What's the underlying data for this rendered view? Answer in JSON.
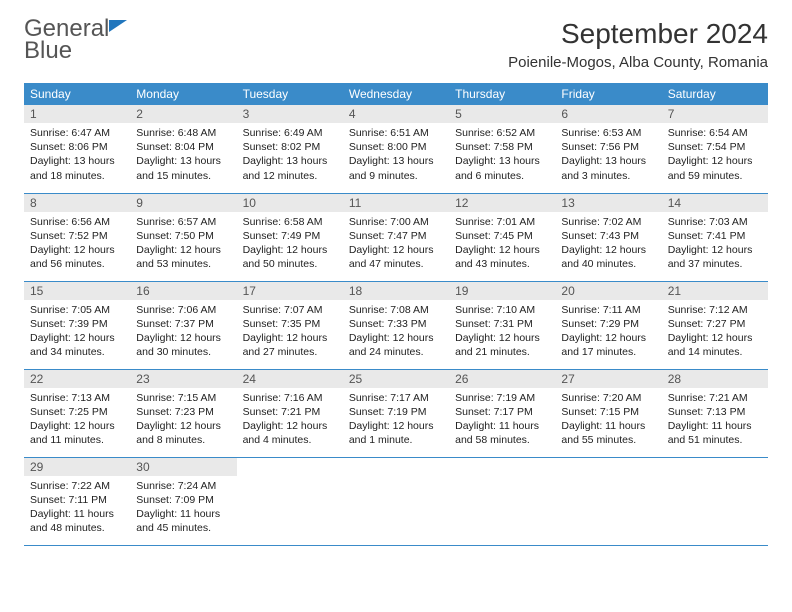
{
  "logo": {
    "line1": "General",
    "line2": "Blue"
  },
  "title": {
    "month": "September 2024",
    "location": "Poienile-Mogos, Alba County, Romania"
  },
  "colors": {
    "header_bg": "#3a8bc9",
    "header_fg": "#ffffff",
    "daynum_bg": "#e9e9e9",
    "rule": "#3a8bc9",
    "logo_blue": "#2176bd"
  },
  "columns": [
    "Sunday",
    "Monday",
    "Tuesday",
    "Wednesday",
    "Thursday",
    "Friday",
    "Saturday"
  ],
  "weeks": [
    [
      {
        "n": "1",
        "sr": "6:47 AM",
        "ss": "8:06 PM",
        "dl": "13 hours and 18 minutes."
      },
      {
        "n": "2",
        "sr": "6:48 AM",
        "ss": "8:04 PM",
        "dl": "13 hours and 15 minutes."
      },
      {
        "n": "3",
        "sr": "6:49 AM",
        "ss": "8:02 PM",
        "dl": "13 hours and 12 minutes."
      },
      {
        "n": "4",
        "sr": "6:51 AM",
        "ss": "8:00 PM",
        "dl": "13 hours and 9 minutes."
      },
      {
        "n": "5",
        "sr": "6:52 AM",
        "ss": "7:58 PM",
        "dl": "13 hours and 6 minutes."
      },
      {
        "n": "6",
        "sr": "6:53 AM",
        "ss": "7:56 PM",
        "dl": "13 hours and 3 minutes."
      },
      {
        "n": "7",
        "sr": "6:54 AM",
        "ss": "7:54 PM",
        "dl": "12 hours and 59 minutes."
      }
    ],
    [
      {
        "n": "8",
        "sr": "6:56 AM",
        "ss": "7:52 PM",
        "dl": "12 hours and 56 minutes."
      },
      {
        "n": "9",
        "sr": "6:57 AM",
        "ss": "7:50 PM",
        "dl": "12 hours and 53 minutes."
      },
      {
        "n": "10",
        "sr": "6:58 AM",
        "ss": "7:49 PM",
        "dl": "12 hours and 50 minutes."
      },
      {
        "n": "11",
        "sr": "7:00 AM",
        "ss": "7:47 PM",
        "dl": "12 hours and 47 minutes."
      },
      {
        "n": "12",
        "sr": "7:01 AM",
        "ss": "7:45 PM",
        "dl": "12 hours and 43 minutes."
      },
      {
        "n": "13",
        "sr": "7:02 AM",
        "ss": "7:43 PM",
        "dl": "12 hours and 40 minutes."
      },
      {
        "n": "14",
        "sr": "7:03 AM",
        "ss": "7:41 PM",
        "dl": "12 hours and 37 minutes."
      }
    ],
    [
      {
        "n": "15",
        "sr": "7:05 AM",
        "ss": "7:39 PM",
        "dl": "12 hours and 34 minutes."
      },
      {
        "n": "16",
        "sr": "7:06 AM",
        "ss": "7:37 PM",
        "dl": "12 hours and 30 minutes."
      },
      {
        "n": "17",
        "sr": "7:07 AM",
        "ss": "7:35 PM",
        "dl": "12 hours and 27 minutes."
      },
      {
        "n": "18",
        "sr": "7:08 AM",
        "ss": "7:33 PM",
        "dl": "12 hours and 24 minutes."
      },
      {
        "n": "19",
        "sr": "7:10 AM",
        "ss": "7:31 PM",
        "dl": "12 hours and 21 minutes."
      },
      {
        "n": "20",
        "sr": "7:11 AM",
        "ss": "7:29 PM",
        "dl": "12 hours and 17 minutes."
      },
      {
        "n": "21",
        "sr": "7:12 AM",
        "ss": "7:27 PM",
        "dl": "12 hours and 14 minutes."
      }
    ],
    [
      {
        "n": "22",
        "sr": "7:13 AM",
        "ss": "7:25 PM",
        "dl": "12 hours and 11 minutes."
      },
      {
        "n": "23",
        "sr": "7:15 AM",
        "ss": "7:23 PM",
        "dl": "12 hours and 8 minutes."
      },
      {
        "n": "24",
        "sr": "7:16 AM",
        "ss": "7:21 PM",
        "dl": "12 hours and 4 minutes."
      },
      {
        "n": "25",
        "sr": "7:17 AM",
        "ss": "7:19 PM",
        "dl": "12 hours and 1 minute."
      },
      {
        "n": "26",
        "sr": "7:19 AM",
        "ss": "7:17 PM",
        "dl": "11 hours and 58 minutes."
      },
      {
        "n": "27",
        "sr": "7:20 AM",
        "ss": "7:15 PM",
        "dl": "11 hours and 55 minutes."
      },
      {
        "n": "28",
        "sr": "7:21 AM",
        "ss": "7:13 PM",
        "dl": "11 hours and 51 minutes."
      }
    ],
    [
      {
        "n": "29",
        "sr": "7:22 AM",
        "ss": "7:11 PM",
        "dl": "11 hours and 48 minutes."
      },
      {
        "n": "30",
        "sr": "7:24 AM",
        "ss": "7:09 PM",
        "dl": "11 hours and 45 minutes."
      },
      null,
      null,
      null,
      null,
      null
    ]
  ],
  "labels": {
    "sunrise": "Sunrise: ",
    "sunset": "Sunset: ",
    "daylight": "Daylight: "
  }
}
